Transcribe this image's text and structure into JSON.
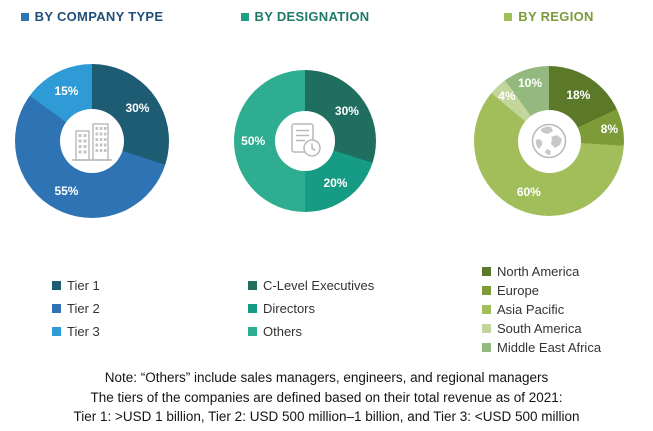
{
  "chart_data": [
    {
      "type": "pie",
      "style": "donut",
      "title": "BY COMPANY TYPE",
      "title_color": "#1F4E79",
      "square_color": "#2E75B5",
      "center_icon": "buildings-icon",
      "legend_position": "bottom",
      "slices": [
        {
          "label": "Tier 1",
          "value": 30,
          "color": "#1E5C74"
        },
        {
          "label": "Tier 2",
          "value": 55,
          "color": "#2E74B5"
        },
        {
          "label": "Tier 3",
          "value": 15,
          "color": "#2F9BD6"
        }
      ]
    },
    {
      "type": "pie",
      "style": "donut",
      "title": "BY DESIGNATION",
      "title_color": "#1E7A68",
      "square_color": "#1F9E85",
      "center_icon": "document-clock-icon",
      "legend_position": "bottom",
      "slices": [
        {
          "label": "C-Level Executives",
          "value": 30,
          "color": "#1F6E5F"
        },
        {
          "label": "Directors",
          "value": 20,
          "color": "#169B84"
        },
        {
          "label": "Others",
          "value": 50,
          "color": "#2EAD90"
        }
      ]
    },
    {
      "type": "pie",
      "style": "donut",
      "title": "BY REGION",
      "title_color": "#7C9A3C",
      "square_color": "#A2BE5A",
      "center_icon": "globe-icon",
      "legend_position": "bottom",
      "slices": [
        {
          "label": "North America",
          "value": 18,
          "color": "#5C7829"
        },
        {
          "label": "Europe",
          "value": 8,
          "color": "#7D9C38"
        },
        {
          "label": "Asia Pacific",
          "value": 60,
          "color": "#A2BE5A"
        },
        {
          "label": "South America",
          "value": 4,
          "color": "#C2D69B"
        },
        {
          "label": "Middle East Africa",
          "value": 10,
          "color": "#93B97F"
        }
      ]
    }
  ],
  "note": {
    "lines": [
      "Note: “Others” include sales managers, engineers, and regional managers",
      "The tiers of the companies are defined based on their total revenue as of 2021:",
      "Tier 1: >USD 1 billion, Tier 2: USD 500 million–1 billion, and Tier 3: <USD 500 million"
    ]
  }
}
